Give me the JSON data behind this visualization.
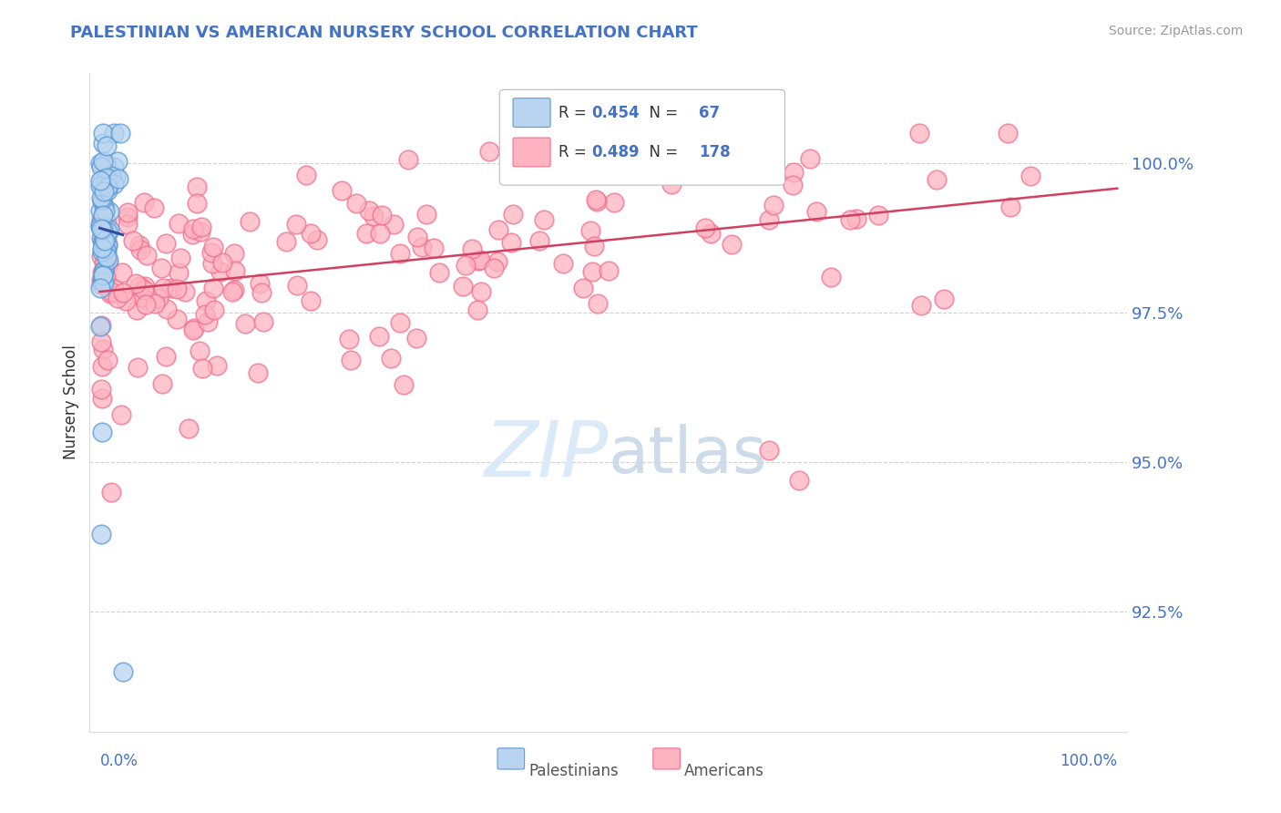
{
  "title": "PALESTINIAN VS AMERICAN NURSERY SCHOOL CORRELATION CHART",
  "source": "Source: ZipAtlas.com",
  "ylabel": "Nursery School",
  "ytick_vals": [
    92.5,
    95.0,
    97.5,
    100.0
  ],
  "ytick_labels": [
    "92.5%",
    "95.0%",
    "97.5%",
    "100.0%"
  ],
  "xlim": [
    -1,
    102
  ],
  "ylim": [
    90.5,
    101.5
  ],
  "blue_face": "#b8d4f0",
  "blue_edge": "#5b9bd5",
  "pink_face": "#ffb3c1",
  "pink_edge": "#f07090",
  "blue_line_color": "#2e4d9e",
  "pink_line_color": "#d04060",
  "title_color": "#4472c4",
  "tick_color": "#4472c4",
  "ylabel_color": "#333333",
  "source_color": "#999999",
  "grid_color": "#cccccc",
  "watermark_color": "#d8e8f8",
  "legend_r1": "R = 0.454   N =  67",
  "legend_r2": "R = 0.489   N = 178",
  "r1_val": "0.454",
  "n1_val": "67",
  "r2_val": "0.489",
  "n2_val": "178",
  "legend_num_color": "#4472c4",
  "bottom_label1": "Palestinians",
  "bottom_label2": "Americans"
}
